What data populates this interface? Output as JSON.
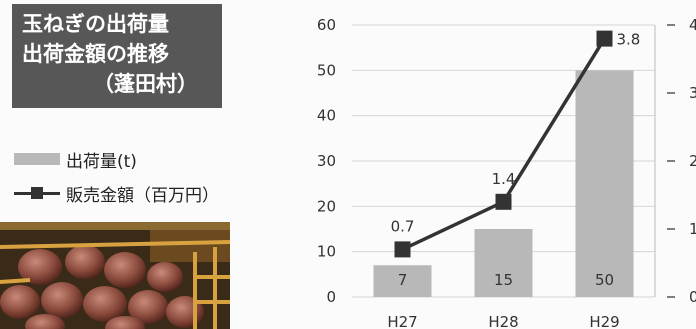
{
  "title": {
    "line1": "玉ねぎの出荷量",
    "line2": "出荷金額の推移",
    "line3": "（蓬田村）"
  },
  "legend": {
    "bar_label": "出荷量(t)",
    "line_label": "販売金額（百万円）"
  },
  "colors": {
    "bar": "#b8b8b8",
    "line": "#333333",
    "title_bg": "#575757"
  },
  "chart_data": {
    "type": "bar",
    "categories": [
      "H27",
      "H28",
      "H29"
    ],
    "series": [
      {
        "name": "出荷量(t)",
        "type": "bar",
        "axis": "left",
        "values": [
          7,
          15,
          50
        ]
      },
      {
        "name": "販売金額（百万円）",
        "type": "line",
        "axis": "right",
        "values": [
          0.7,
          1.4,
          3.8
        ]
      }
    ],
    "ylim": [
      0,
      60
    ],
    "y_ticks": [
      0,
      10,
      20,
      30,
      40,
      50,
      60
    ],
    "y2lim": [
      0,
      4
    ],
    "y2_ticks": [
      0,
      1,
      2,
      3,
      4
    ],
    "grid": true,
    "legend_position": "left"
  }
}
